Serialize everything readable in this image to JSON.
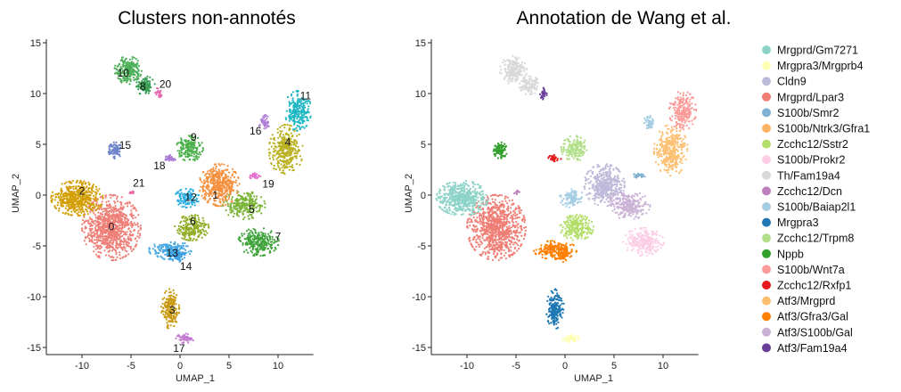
{
  "chart_data": [
    {
      "type": "scatter",
      "title": "Clusters non-annotés",
      "xlabel": "UMAP_1",
      "ylabel": "UMAP_2",
      "xlim": [
        -13.5,
        14.5
      ],
      "ylim": [
        -16,
        16
      ],
      "xticks": [
        -10,
        -5,
        0,
        5,
        10
      ],
      "yticks": [
        -15,
        -10,
        -5,
        0,
        5,
        10,
        15
      ],
      "grid": false,
      "legend": "none",
      "clusters": [
        {
          "label": "0",
          "color": "#ee7f77",
          "cx": -7.0,
          "cy": -3.2,
          "rx": 2.6,
          "ry": 2.8,
          "n": 900
        },
        {
          "label": "2",
          "color": "#d39f06",
          "cx": -10.5,
          "cy": -0.3,
          "rx": 2.3,
          "ry": 1.5,
          "n": 520
        },
        {
          "label": "1",
          "color": "#f5913f",
          "cx": 4.0,
          "cy": 1.0,
          "rx": 1.8,
          "ry": 1.8,
          "n": 450
        },
        {
          "label": "3",
          "color": "#c89a12",
          "cx": -1.0,
          "cy": -11.2,
          "rx": 0.8,
          "ry": 1.7,
          "n": 200
        },
        {
          "label": "4",
          "color": "#b9b020",
          "cx": 10.8,
          "cy": 4.4,
          "rx": 1.5,
          "ry": 2.2,
          "n": 340
        },
        {
          "label": "5",
          "color": "#7db43a",
          "cx": 6.5,
          "cy": -1.0,
          "rx": 1.9,
          "ry": 1.2,
          "n": 260
        },
        {
          "label": "6",
          "color": "#93ad27",
          "cx": 1.2,
          "cy": -3.2,
          "rx": 1.5,
          "ry": 1.1,
          "n": 220
        },
        {
          "label": "7",
          "color": "#3ea33a",
          "cx": 8.0,
          "cy": -4.6,
          "rx": 1.8,
          "ry": 1.2,
          "n": 260
        },
        {
          "label": "8",
          "color": "#3b9e55",
          "cx": -3.6,
          "cy": 10.8,
          "rx": 0.9,
          "ry": 0.8,
          "n": 120
        },
        {
          "label": "9",
          "color": "#4ab04a",
          "cx": 1.0,
          "cy": 4.6,
          "rx": 1.2,
          "ry": 1.1,
          "n": 170
        },
        {
          "label": "10",
          "color": "#4caf58",
          "cx": -5.3,
          "cy": 12.3,
          "rx": 1.2,
          "ry": 1.2,
          "n": 220
        },
        {
          "label": "11",
          "color": "#1fb8c3",
          "cx": 12.0,
          "cy": 8.3,
          "rx": 1.2,
          "ry": 1.7,
          "n": 230
        },
        {
          "label": "12",
          "color": "#2aaee3",
          "cx": 0.7,
          "cy": -0.3,
          "rx": 1.1,
          "ry": 0.8,
          "n": 110
        },
        {
          "label": "13",
          "color": "#47a9e4",
          "cx": -1.0,
          "cy": -5.4,
          "rx": 1.9,
          "ry": 0.8,
          "n": 200
        },
        {
          "label": "14",
          "color": "#3c9ee0",
          "cx": -0.2,
          "cy": -6.0,
          "rx": 0.7,
          "ry": 0.5,
          "n": 50
        },
        {
          "label": "15",
          "color": "#6e83c9",
          "cx": -6.6,
          "cy": 4.4,
          "rx": 0.6,
          "ry": 0.7,
          "n": 90
        },
        {
          "label": "16",
          "color": "#b07fd7",
          "cx": 8.6,
          "cy": 7.2,
          "rx": 0.5,
          "ry": 0.6,
          "n": 50
        },
        {
          "label": "17",
          "color": "#c47ad1",
          "cx": 0.5,
          "cy": -14.1,
          "rx": 0.8,
          "ry": 0.4,
          "n": 50
        },
        {
          "label": "18",
          "color": "#a67ad4",
          "cx": -1.1,
          "cy": 3.6,
          "rx": 0.6,
          "ry": 0.3,
          "n": 30
        },
        {
          "label": "19",
          "color": "#e26fcf",
          "cx": 7.6,
          "cy": 1.9,
          "rx": 0.6,
          "ry": 0.3,
          "n": 30
        },
        {
          "label": "20",
          "color": "#e66bb3",
          "cx": -2.2,
          "cy": 10.0,
          "rx": 0.3,
          "ry": 0.5,
          "n": 25
        },
        {
          "label": "21",
          "color": "#f267a4",
          "cx": -4.9,
          "cy": 0.3,
          "rx": 0.3,
          "ry": 0.2,
          "n": 12
        }
      ],
      "label_positions": [
        {
          "label": "0",
          "x": -7.0,
          "y": -3.1
        },
        {
          "label": "1",
          "x": 3.6,
          "y": 0.0
        },
        {
          "label": "2",
          "x": -10.0,
          "y": 0.4
        },
        {
          "label": "3",
          "x": -0.8,
          "y": -11.3
        },
        {
          "label": "4",
          "x": 11.0,
          "y": 5.2
        },
        {
          "label": "5",
          "x": 7.3,
          "y": -1.4
        },
        {
          "label": "6",
          "x": 1.3,
          "y": -2.6
        },
        {
          "label": "7",
          "x": 10.0,
          "y": -4.1
        },
        {
          "label": "8",
          "x": -3.8,
          "y": 10.7
        },
        {
          "label": "9",
          "x": 1.4,
          "y": 5.7
        },
        {
          "label": "10",
          "x": -5.8,
          "y": 12.0
        },
        {
          "label": "11",
          "x": 12.8,
          "y": 9.8
        },
        {
          "label": "12",
          "x": 1.1,
          "y": -0.2
        },
        {
          "label": "13",
          "x": -0.8,
          "y": -5.7
        },
        {
          "label": "14",
          "x": 0.6,
          "y": -7.0
        },
        {
          "label": "15",
          "x": -5.6,
          "y": 4.9
        },
        {
          "label": "16",
          "x": 7.7,
          "y": 6.3
        },
        {
          "label": "17",
          "x": -0.1,
          "y": -15.1
        },
        {
          "label": "18",
          "x": -2.1,
          "y": 2.9
        },
        {
          "label": "19",
          "x": 9.0,
          "y": 1.1
        },
        {
          "label": "20",
          "x": -1.5,
          "y": 10.9
        },
        {
          "label": "21",
          "x": -4.2,
          "y": 1.2
        }
      ]
    },
    {
      "type": "scatter",
      "title": "Annotation de Wang et al.",
      "xlabel": "UMAP_1",
      "ylabel": "UMAP_2",
      "xlim": [
        -13.5,
        14.5
      ],
      "ylim": [
        -16,
        16
      ],
      "xticks": [
        -10,
        -5,
        0,
        5,
        10
      ],
      "yticks": [
        -15,
        -10,
        -5,
        0,
        5,
        10,
        15
      ],
      "grid": false,
      "legend": "right",
      "legend_entries": [
        {
          "name": "Mrgprd/Gm7271",
          "color": "#8dd3c7"
        },
        {
          "name": "Mrgpra3/Mrgprb4",
          "color": "#ffffb3"
        },
        {
          "name": "Cldn9",
          "color": "#bebada"
        },
        {
          "name": "Mrgprd/Lpar3",
          "color": "#ef7e75"
        },
        {
          "name": "S100b/Smr2",
          "color": "#80b1d3"
        },
        {
          "name": "S100b/Ntrk3/Gfra1",
          "color": "#fdb462"
        },
        {
          "name": "Zcchc12/Sstr2",
          "color": "#b3de69"
        },
        {
          "name": "S100b/Prokr2",
          "color": "#fccde5"
        },
        {
          "name": "Th/Fam19a4",
          "color": "#d9d9d9"
        },
        {
          "name": "Zcchc12/Dcn",
          "color": "#bc80bd"
        },
        {
          "name": "S100b/Baiap2l1",
          "color": "#a6cee3"
        },
        {
          "name": "Mrgpra3",
          "color": "#1f78b4"
        },
        {
          "name": "Zcchc12/Trpm8",
          "color": "#b2df8a"
        },
        {
          "name": "Nppb",
          "color": "#33a02c"
        },
        {
          "name": "S100b/Wnt7a",
          "color": "#fb9a99"
        },
        {
          "name": "Zcchc12/Rxfp1",
          "color": "#e31a1c"
        },
        {
          "name": "Atf3/Mrgprd",
          "color": "#fdbf6f"
        },
        {
          "name": "Atf3/Gfra3/Gal",
          "color": "#ff7f00"
        },
        {
          "name": "Atf3/S100b/Gal",
          "color": "#cab2d6"
        },
        {
          "name": "Atf3/Fam19a4",
          "color": "#6a3d9a"
        }
      ],
      "clusters": [
        {
          "label": "Mrgprd/Lpar3",
          "color": "#ef7e75",
          "cx": -7.0,
          "cy": -3.2,
          "rx": 2.6,
          "ry": 2.8,
          "n": 900
        },
        {
          "label": "Mrgprd/Gm7271",
          "color": "#8dd3c7",
          "cx": -10.5,
          "cy": -0.3,
          "rx": 2.3,
          "ry": 1.5,
          "n": 520
        },
        {
          "label": "Cldn9",
          "color": "#bebada",
          "cx": 4.0,
          "cy": 1.0,
          "rx": 1.8,
          "ry": 1.8,
          "n": 450
        },
        {
          "label": "Mrgpra3",
          "color": "#1f78b4",
          "cx": -1.0,
          "cy": -11.2,
          "rx": 0.8,
          "ry": 1.7,
          "n": 200
        },
        {
          "label": "S100b/Wnt7a",
          "color": "#fb9a99",
          "cx": 12.0,
          "cy": 8.3,
          "rx": 1.2,
          "ry": 1.7,
          "n": 230
        },
        {
          "label": "Atf3/Mrgprd",
          "color": "#fdbf6f",
          "cx": 10.8,
          "cy": 4.4,
          "rx": 1.5,
          "ry": 2.2,
          "n": 340
        },
        {
          "label": "Atf3/S100b/Gal",
          "color": "#cab2d6",
          "cx": 6.5,
          "cy": -1.0,
          "rx": 1.9,
          "ry": 1.2,
          "n": 260
        },
        {
          "label": "S100b/Prokr2",
          "color": "#fccde5",
          "cx": 8.0,
          "cy": -4.6,
          "rx": 1.8,
          "ry": 1.2,
          "n": 260
        },
        {
          "label": "Zcchc12/Sstr2",
          "color": "#b3de69",
          "cx": 1.2,
          "cy": -3.2,
          "rx": 1.5,
          "ry": 1.1,
          "n": 220
        },
        {
          "label": "Th/Fam19a4",
          "color": "#d9d9d9",
          "cx": -5.3,
          "cy": 12.3,
          "rx": 1.2,
          "ry": 1.2,
          "n": 220
        },
        {
          "label": "Th/Fam19a4",
          "color": "#d9d9d9",
          "cx": -3.6,
          "cy": 10.8,
          "rx": 0.9,
          "ry": 0.8,
          "n": 120
        },
        {
          "label": "Zcchc12/Trpm8",
          "color": "#b2df8a",
          "cx": 1.0,
          "cy": 4.6,
          "rx": 1.2,
          "ry": 1.1,
          "n": 170
        },
        {
          "label": "S100b/Baiap2l1",
          "color": "#a6cee3",
          "cx": 0.7,
          "cy": -0.3,
          "rx": 1.1,
          "ry": 0.8,
          "n": 110
        },
        {
          "label": "Atf3/Gfra3/Gal",
          "color": "#ff7f00",
          "cx": -1.0,
          "cy": -5.4,
          "rx": 1.9,
          "ry": 0.8,
          "n": 200
        },
        {
          "label": "Atf3/Gfra3/Gal",
          "color": "#ff7f00",
          "cx": -0.2,
          "cy": -6.0,
          "rx": 0.7,
          "ry": 0.5,
          "n": 50
        },
        {
          "label": "Nppb",
          "color": "#33a02c",
          "cx": -6.6,
          "cy": 4.4,
          "rx": 0.6,
          "ry": 0.7,
          "n": 90
        },
        {
          "label": "S100b/Baiap2l1",
          "color": "#a6cee3",
          "cx": 8.6,
          "cy": 7.2,
          "rx": 0.5,
          "ry": 0.6,
          "n": 50
        },
        {
          "label": "Mrgpra3/Mrgprb4",
          "color": "#ffffb3",
          "cx": 0.5,
          "cy": -14.1,
          "rx": 0.8,
          "ry": 0.4,
          "n": 50
        },
        {
          "label": "Zcchc12/Rxfp1",
          "color": "#e31a1c",
          "cx": -1.1,
          "cy": 3.6,
          "rx": 0.6,
          "ry": 0.3,
          "n": 30
        },
        {
          "label": "S100b/Smr2",
          "color": "#80b1d3",
          "cx": 7.6,
          "cy": 1.9,
          "rx": 0.6,
          "ry": 0.3,
          "n": 30
        },
        {
          "label": "Atf3/Fam19a4",
          "color": "#6a3d9a",
          "cx": -2.2,
          "cy": 10.0,
          "rx": 0.3,
          "ry": 0.5,
          "n": 25
        },
        {
          "label": "Zcchc12/Dcn",
          "color": "#bc80bd",
          "cx": -4.9,
          "cy": 0.3,
          "rx": 0.3,
          "ry": 0.2,
          "n": 12
        }
      ]
    }
  ]
}
